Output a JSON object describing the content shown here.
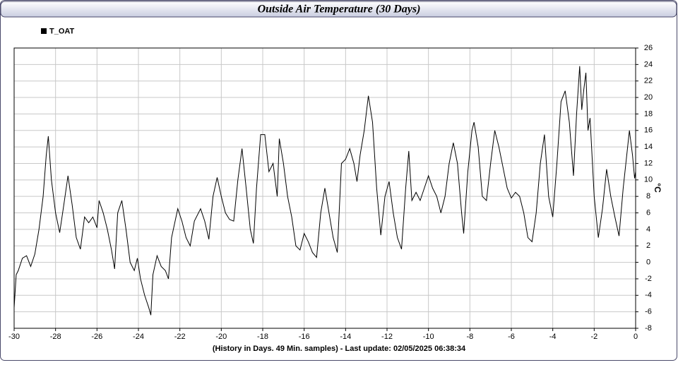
{
  "chart_data": {
    "type": "line",
    "title": "Outside Air Temperature (30 Days)",
    "xlabel": "(History in Days. 49 Min. samples) - Last update: 02/05/2025 06:38:34",
    "ylabel": "°C",
    "xlim": [
      -30,
      0
    ],
    "ylim": [
      -8,
      26
    ],
    "xticks": [
      -30,
      -28,
      -26,
      -24,
      -22,
      -20,
      -18,
      -16,
      -14,
      -12,
      -10,
      -8,
      -6,
      -4,
      -2,
      0
    ],
    "yticks": [
      -8,
      -6,
      -4,
      -2,
      0,
      2,
      4,
      6,
      8,
      10,
      12,
      14,
      16,
      18,
      20,
      22,
      24,
      26
    ],
    "grid": true,
    "legend": "top-left",
    "x": [
      -30,
      -29.9,
      -29.8,
      -29.6,
      -29.4,
      -29.2,
      -29,
      -28.8,
      -28.6,
      -28.45,
      -28.35,
      -28.2,
      -28,
      -27.8,
      -27.6,
      -27.4,
      -27.2,
      -27,
      -26.8,
      -26.6,
      -26.4,
      -26.2,
      -26,
      -25.9,
      -25.7,
      -25.5,
      -25.3,
      -25.15,
      -25,
      -24.8,
      -24.6,
      -24.4,
      -24.2,
      -24.05,
      -23.9,
      -23.7,
      -23.5,
      -23.4,
      -23.3,
      -23.1,
      -22.9,
      -22.7,
      -22.55,
      -22.4,
      -22.1,
      -21.9,
      -21.7,
      -21.5,
      -21.3,
      -21,
      -20.8,
      -20.6,
      -20.4,
      -20.2,
      -20,
      -19.8,
      -19.6,
      -19.4,
      -19.2,
      -19,
      -18.8,
      -18.6,
      -18.45,
      -18.3,
      -18.1,
      -17.9,
      -17.7,
      -17.5,
      -17.3,
      -17.2,
      -17,
      -16.8,
      -16.6,
      -16.4,
      -16.2,
      -16,
      -15.8,
      -15.6,
      -15.4,
      -15.2,
      -15,
      -14.8,
      -14.6,
      -14.4,
      -14.2,
      -14,
      -13.8,
      -13.6,
      -13.45,
      -13.3,
      -13.1,
      -12.9,
      -12.7,
      -12.5,
      -12.3,
      -12.1,
      -11.9,
      -11.7,
      -11.5,
      -11.3,
      -11.1,
      -10.95,
      -10.8,
      -10.6,
      -10.4,
      -10.2,
      -10,
      -9.8,
      -9.6,
      -9.4,
      -9.2,
      -9,
      -8.8,
      -8.6,
      -8.4,
      -8.3,
      -8.1,
      -7.9,
      -7.8,
      -7.6,
      -7.4,
      -7.2,
      -7,
      -6.8,
      -6.6,
      -6.4,
      -6.2,
      -6,
      -5.8,
      -5.6,
      -5.4,
      -5.2,
      -5,
      -4.8,
      -4.6,
      -4.4,
      -4.2,
      -4,
      -3.8,
      -3.6,
      -3.4,
      -3.2,
      -3,
      -2.85,
      -2.7,
      -2.6,
      -2.5,
      -2.4,
      -2.3,
      -2.2,
      -2,
      -1.8,
      -1.6,
      -1.4,
      -1.2,
      -1,
      -0.8,
      -0.6,
      -0.45,
      -0.3,
      -0.15,
      -0.05,
      0
    ],
    "series": [
      {
        "name": "T_OAT",
        "color": "#000000",
        "values": [
          -5.5,
          -1.5,
          -1,
          0.5,
          0.8,
          -0.5,
          1,
          4,
          8,
          13,
          15.3,
          10,
          6,
          3.6,
          7,
          10.5,
          7,
          3,
          1.6,
          5.5,
          4.8,
          5.5,
          4.2,
          7.5,
          6,
          4,
          1.5,
          -0.8,
          6,
          7.5,
          4,
          0,
          -1,
          0.5,
          -2,
          -4,
          -5.5,
          -6.4,
          -1.5,
          0.8,
          -0.5,
          -1,
          -2,
          3,
          6.5,
          5,
          3,
          2,
          5,
          6.5,
          5,
          2.8,
          8,
          10.3,
          8,
          6,
          5.2,
          5,
          10,
          13.8,
          9,
          4,
          2.3,
          9,
          15.5,
          15.5,
          11,
          12,
          8,
          15,
          12,
          8,
          5.5,
          2,
          1.5,
          3.5,
          2.5,
          1.2,
          0.6,
          6,
          9,
          6,
          3,
          1.2,
          12,
          12.5,
          13.8,
          12,
          9.8,
          13,
          16,
          20.2,
          17,
          9,
          3.3,
          8,
          9.8,
          6,
          3,
          1.6,
          9,
          13.5,
          7.5,
          8.5,
          7.5,
          9,
          10.5,
          9,
          8,
          6,
          8,
          12,
          14.5,
          12,
          6,
          3.5,
          11,
          16,
          17,
          14,
          8,
          7.5,
          12,
          16,
          14,
          11.5,
          9,
          7.8,
          8.5,
          8,
          6,
          3,
          2.5,
          6,
          12,
          15.5,
          8,
          5.5,
          12,
          19.5,
          20.8,
          17,
          10.5,
          18,
          23.8,
          18.5,
          21,
          23,
          16,
          17.5,
          8,
          3,
          6.5,
          11.3,
          8,
          5.5,
          3.2,
          9,
          12.5,
          16,
          13,
          10.2,
          11
        ]
      }
    ]
  }
}
